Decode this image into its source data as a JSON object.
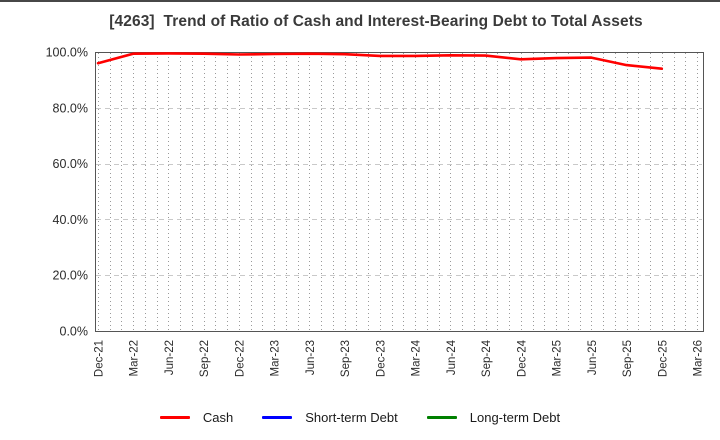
{
  "page": {
    "background": "#ffffff",
    "top_border_color": "#474747"
  },
  "chart_data": {
    "type": "line",
    "title": "[4263]  Trend of Ratio of Cash and Interest-Bearing Debt to Total Assets",
    "xlabel": "",
    "ylabel": "",
    "ylim": [
      0,
      100
    ],
    "y_ticks": [
      0,
      20,
      40,
      60,
      80,
      100
    ],
    "y_tick_labels": [
      "0.0%",
      "20.0%",
      "40.0%",
      "60.0%",
      "80.0%",
      "100.0%"
    ],
    "x_tick_labels": [
      "Dec-21",
      "Mar-22",
      "Jun-22",
      "Sep-22",
      "Dec-22",
      "Mar-23",
      "Jun-23",
      "Sep-23",
      "Dec-23",
      "Mar-24",
      "Jun-24",
      "Sep-24",
      "Dec-24",
      "Mar-25",
      "Jun-25",
      "Sep-25",
      "Dec-25",
      "Mar-26"
    ],
    "x_months_span": 51,
    "x_quarter_step_months": 3,
    "grid": {
      "vertical": "monthly dotted gray",
      "horizontal": "dashed light gray at each y tick"
    },
    "legend_position": "bottom-center",
    "series": [
      {
        "name": "Cash",
        "color": "#ff0000",
        "x_months": [
          0,
          3,
          6,
          9,
          12,
          15,
          18,
          21,
          24,
          27,
          30,
          33,
          36,
          39,
          42,
          45,
          48
        ],
        "values": [
          96.0,
          99.4,
          99.5,
          99.4,
          99.1,
          99.3,
          99.4,
          99.2,
          98.6,
          98.6,
          98.8,
          98.7,
          97.4,
          97.8,
          98.0,
          95.3,
          94.0
        ]
      },
      {
        "name": "Short-term Debt",
        "color": "#0000ff",
        "x_months": [],
        "values": []
      },
      {
        "name": "Long-term Debt",
        "color": "#008000",
        "x_months": [],
        "values": []
      }
    ]
  }
}
